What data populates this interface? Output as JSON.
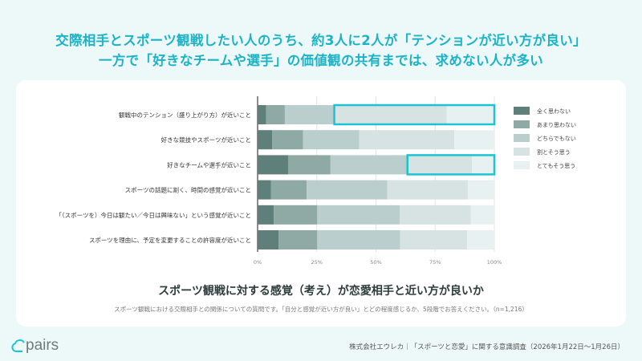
{
  "header": {
    "line1": "交際相手とスポーツ観戦したい人のうち、約3人に2人が「テンションが近い方が良い」",
    "line2": "一方で「好きなチームや選手」の価値観の共有までは、求めない人が多い"
  },
  "chart_data": {
    "type": "bar",
    "orientation": "horizontal-stacked-100",
    "title": "スポーツ観戦に対する感覚（考え）が恋愛相手と近い方が良いか",
    "note": "スポーツ観戦における交際相手との関係についての質問です。「自分と感覚が近い方が良い」とどの程度感じるか、5段階でお答えください。（n=1,216）",
    "categories": [
      "観戦中のテンション（盛り上がり方）が近いこと",
      "好きな競技やスポーツが近いこと",
      "好きなチームや選手が近いこと",
      "スポーツの話題に割く、時間の感覚が近いこと",
      "「（スポーツを）今日は観たい／今日は興味ない」という感覚が近いこと",
      "スポーツを理由に、予定を変更することの許容度が近いこと"
    ],
    "series": [
      {
        "name": "全く思わない",
        "color": "#5f7f7b",
        "values": [
          3.6,
          6.2,
          13.0,
          5.7,
          6.8,
          8.9
        ]
      },
      {
        "name": "あまり思わない",
        "color": "#8fa9a5",
        "values": [
          7.9,
          13.0,
          17.8,
          15.0,
          18.4,
          16.3
        ]
      },
      {
        "name": "どちらでもない",
        "color": "#bacfcd",
        "values": [
          20.9,
          23.7,
          32.5,
          34.1,
          34.8,
          35.0
        ]
      },
      {
        "name": "割とそう思う",
        "color": "#d6e3e2",
        "values": [
          47.5,
          40.2,
          27.3,
          34.0,
          30.1,
          28.3
        ]
      },
      {
        "name": "とてもそう思う",
        "color": "#e8f1f1",
        "values": [
          20.1,
          16.9,
          9.4,
          11.2,
          9.9,
          11.5
        ]
      }
    ],
    "highlighted_categories": [
      0,
      2
    ],
    "highlight_color": "#1cc3d3",
    "xlim": [
      0,
      100
    ],
    "xticks": [
      "0%",
      "25%",
      "50%",
      "75%",
      "100%"
    ],
    "grid": true,
    "legend": "right"
  },
  "footer": {
    "logo": "pairs",
    "credit": "株式会社エウレカ｜「スポーツと恋愛」に関する意識調査（2026年1月22日〜1月26日）"
  }
}
